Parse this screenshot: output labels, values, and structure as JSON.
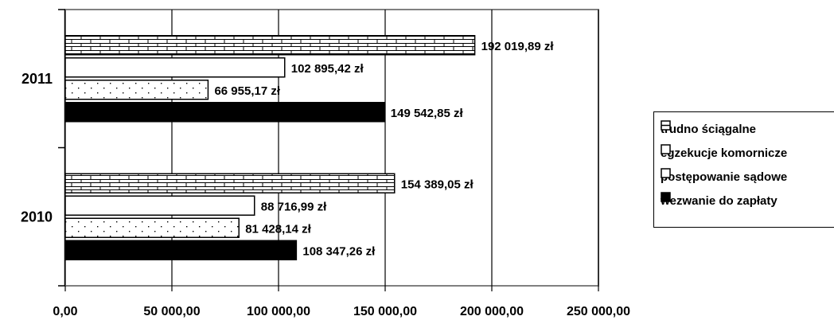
{
  "chart_data": {
    "type": "bar",
    "orientation": "horizontal",
    "categories": [
      "2011",
      "2010"
    ],
    "series": [
      {
        "name": "trudno ściągalne",
        "values": [
          192019.89,
          154389.05
        ],
        "labels": [
          "192 019,89 zł",
          "154 389,05 zł"
        ],
        "pattern": "brick"
      },
      {
        "name": "egzekucje komornicze",
        "values": [
          102895.42,
          88716.99
        ],
        "labels": [
          "102 895,42 zł",
          "88 716,99 zł"
        ],
        "pattern": "white"
      },
      {
        "name": "postępowanie sądowe",
        "values": [
          66955.17,
          81428.14
        ],
        "labels": [
          "66 955,17 zł",
          "81 428,14 zł"
        ],
        "pattern": "dots"
      },
      {
        "name": "wezwanie do zapłaty",
        "values": [
          149542.85,
          108347.26
        ],
        "labels": [
          "149 542,85 zł",
          "108 347,26 zł"
        ],
        "pattern": "black"
      }
    ],
    "x_ticks": [
      0,
      50000,
      100000,
      150000,
      200000,
      250000
    ],
    "x_tick_labels": [
      "0,00",
      "50 000,00",
      "100 000,00",
      "150 000,00",
      "200 000,00",
      "250 000,00"
    ],
    "xlim": [
      0,
      250000
    ],
    "grid": true,
    "legend_position": "right",
    "title": "",
    "xlabel": "",
    "ylabel": ""
  },
  "colors": {
    "bar_fill": "#000000",
    "background": "#ffffff",
    "grid": "#000000"
  }
}
